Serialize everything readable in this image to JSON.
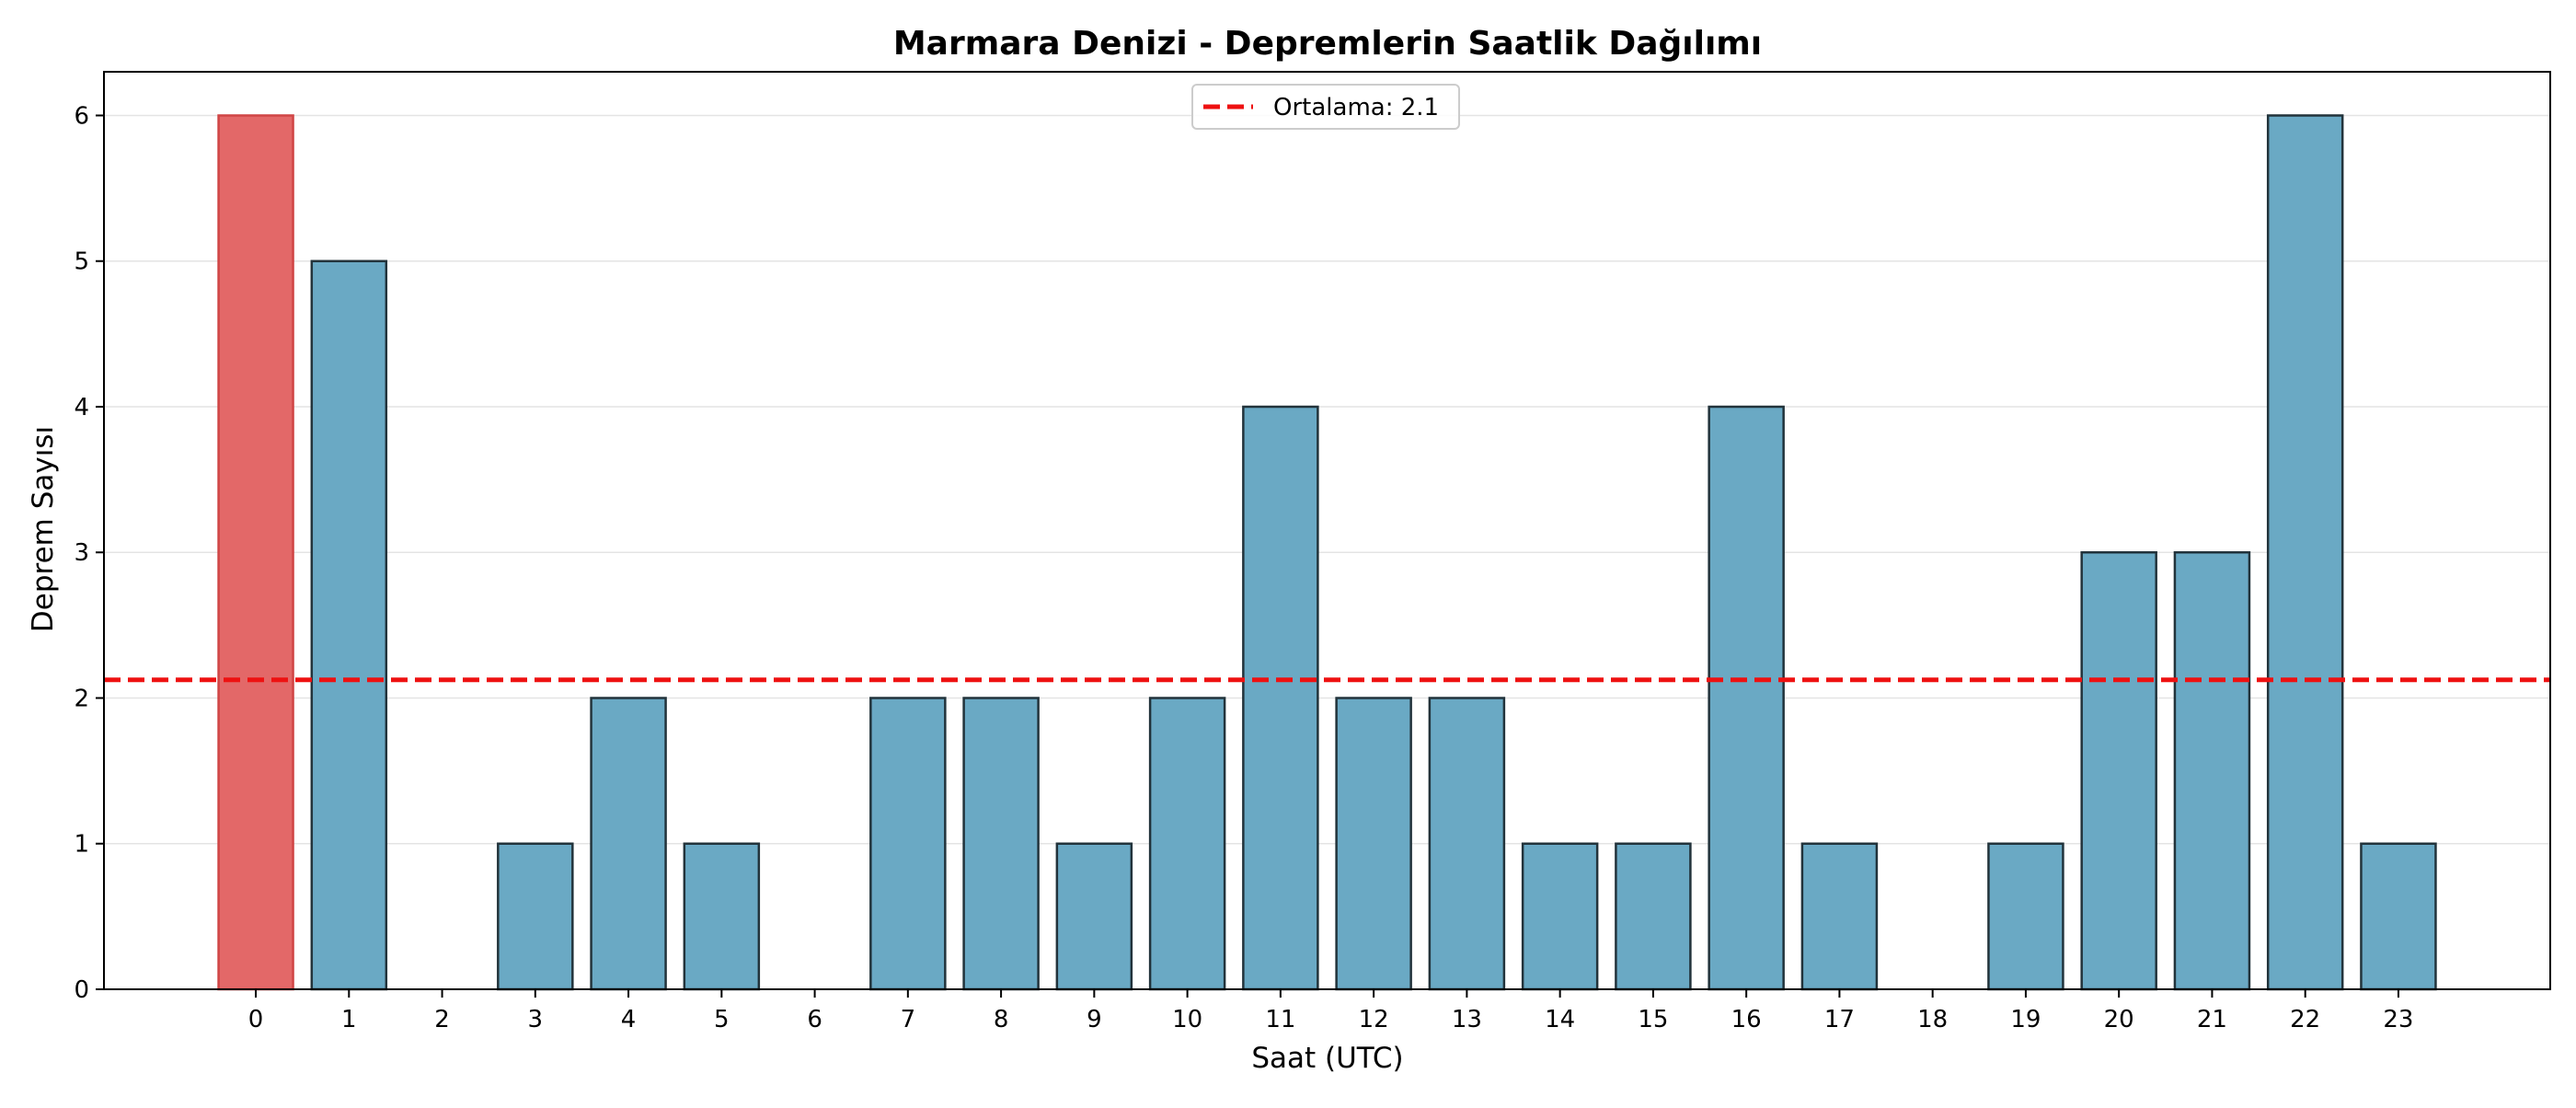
{
  "chart_data": {
    "type": "bar",
    "title": "Marmara Denizi - Depremlerin Saatlik Dağılımı",
    "xlabel": "Saat (UTC)",
    "ylabel": "Deprem Sayısı",
    "categories": [
      "0",
      "1",
      "2",
      "3",
      "4",
      "5",
      "6",
      "7",
      "8",
      "9",
      "10",
      "11",
      "12",
      "13",
      "14",
      "15",
      "16",
      "17",
      "18",
      "19",
      "20",
      "21",
      "22",
      "23"
    ],
    "x": [
      0,
      1,
      2,
      3,
      4,
      5,
      6,
      7,
      8,
      9,
      10,
      11,
      12,
      13,
      14,
      15,
      16,
      17,
      18,
      19,
      20,
      21,
      22,
      23
    ],
    "values": [
      6,
      5,
      0,
      1,
      2,
      1,
      0,
      2,
      2,
      1,
      2,
      4,
      2,
      2,
      1,
      1,
      4,
      1,
      0,
      1,
      3,
      3,
      6,
      1
    ],
    "highlight_index": 0,
    "xlim": [
      -1.63,
      24.63
    ],
    "ylim": [
      0,
      6.3
    ],
    "yticks": [
      0,
      1,
      2,
      3,
      4,
      5,
      6
    ],
    "grid": "y",
    "legend_placement": "upper center",
    "reference_line": {
      "label": "Ortalama: 2.1",
      "value": 2.125
    },
    "colors": {
      "bar": "#6aa9c4",
      "bar_highlight": "#e36868",
      "bar_edge": "#22333b",
      "highlight_edge": "#d04545",
      "mean_line": "#ee1111",
      "grid": "#e4e4e4"
    }
  }
}
